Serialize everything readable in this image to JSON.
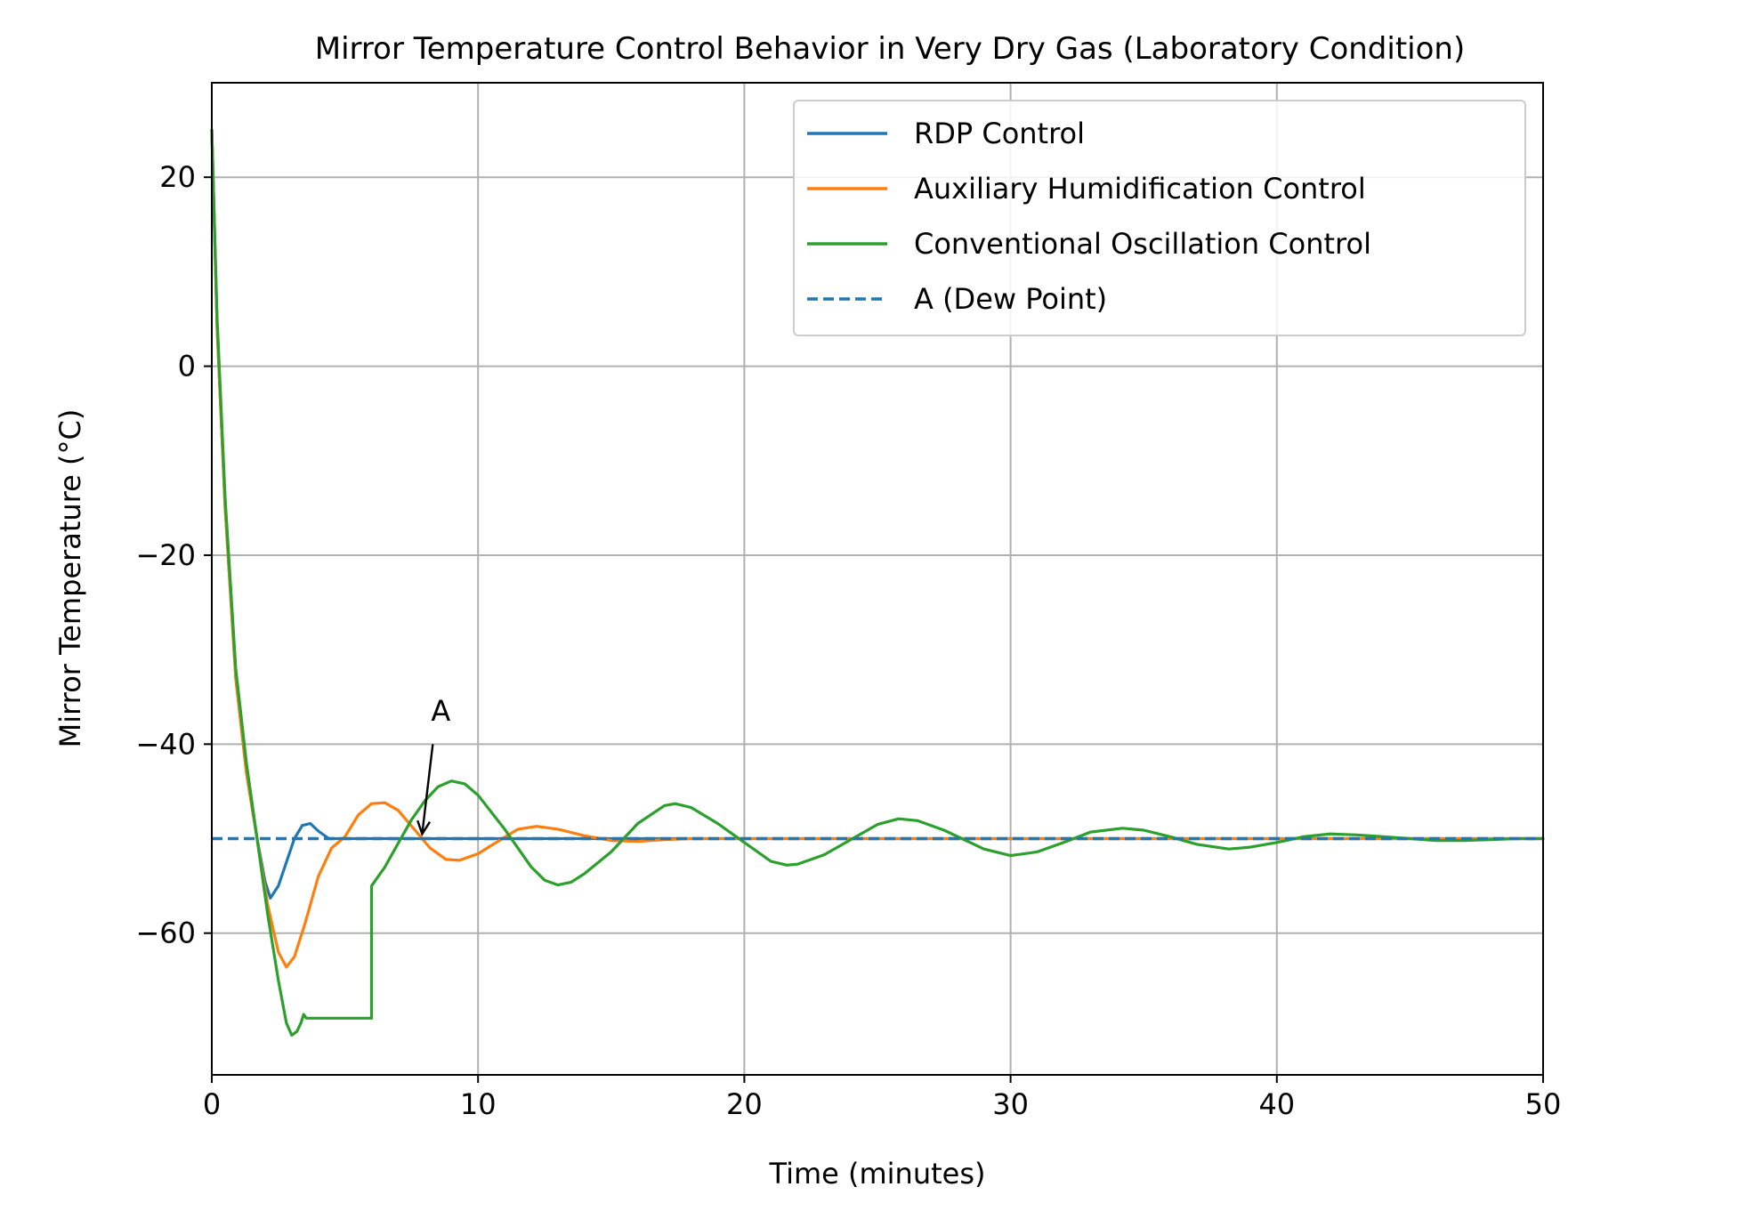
{
  "chart_data": {
    "type": "line",
    "title": "Mirror Temperature Control Behavior in Very Dry Gas (Laboratory Condition)",
    "xlabel": "Time (minutes)",
    "ylabel": "Mirror Temperature (°C)",
    "xlim": [
      0,
      50
    ],
    "ylim": [
      -75,
      30
    ],
    "xticks": [
      0,
      10,
      20,
      30,
      40,
      50
    ],
    "yticks": [
      -60,
      -40,
      -20,
      0,
      20
    ],
    "ytick_labels": [
      "−60",
      "−40",
      "−20",
      "0",
      "20"
    ],
    "grid": true,
    "legend_position": "top-right",
    "series": [
      {
        "name": "RDP Control",
        "color": "#1f77b4",
        "style": "solid",
        "points": [
          [
            0,
            25
          ],
          [
            0.2,
            4
          ],
          [
            0.5,
            -15
          ],
          [
            0.9,
            -33
          ],
          [
            1.3,
            -43
          ],
          [
            1.7,
            -50
          ],
          [
            2.0,
            -54.5
          ],
          [
            2.2,
            -56.3
          ],
          [
            2.5,
            -55
          ],
          [
            2.8,
            -52.5
          ],
          [
            3.1,
            -50
          ],
          [
            3.4,
            -48.6
          ],
          [
            3.7,
            -48.4
          ],
          [
            4.0,
            -49.2
          ],
          [
            4.4,
            -50
          ],
          [
            5,
            -50
          ],
          [
            10,
            -50
          ],
          [
            20,
            -50
          ],
          [
            30,
            -50
          ],
          [
            40,
            -50
          ],
          [
            50,
            -50
          ]
        ]
      },
      {
        "name": "Auxiliary Humidification Control",
        "color": "#ff7f0e",
        "style": "solid",
        "points": [
          [
            0,
            25
          ],
          [
            0.2,
            4
          ],
          [
            0.5,
            -15
          ],
          [
            0.9,
            -33
          ],
          [
            1.3,
            -43
          ],
          [
            1.7,
            -50
          ],
          [
            2.1,
            -57
          ],
          [
            2.5,
            -62
          ],
          [
            2.8,
            -63.6
          ],
          [
            3.1,
            -62.5
          ],
          [
            3.5,
            -59
          ],
          [
            4.0,
            -54
          ],
          [
            4.5,
            -51
          ],
          [
            5,
            -49.8
          ],
          [
            5.5,
            -47.5
          ],
          [
            6.0,
            -46.3
          ],
          [
            6.5,
            -46.2
          ],
          [
            7.0,
            -47
          ],
          [
            7.6,
            -49
          ],
          [
            8.2,
            -51
          ],
          [
            8.8,
            -52.2
          ],
          [
            9.3,
            -52.3
          ],
          [
            10,
            -51.6
          ],
          [
            10.8,
            -50.2
          ],
          [
            11.5,
            -49
          ],
          [
            12.2,
            -48.7
          ],
          [
            13,
            -49
          ],
          [
            14,
            -49.7
          ],
          [
            15,
            -50.2
          ],
          [
            16,
            -50.3
          ],
          [
            17,
            -50.1
          ],
          [
            18,
            -50
          ],
          [
            20,
            -50
          ],
          [
            30,
            -50
          ],
          [
            40,
            -50
          ],
          [
            50,
            -50
          ]
        ]
      },
      {
        "name": "Conventional Oscillation Control",
        "color": "#2ca02c",
        "style": "solid",
        "points": [
          [
            0,
            25
          ],
          [
            0.2,
            5
          ],
          [
            0.5,
            -14
          ],
          [
            0.9,
            -32
          ],
          [
            1.3,
            -42
          ],
          [
            1.7,
            -50
          ],
          [
            2.1,
            -58
          ],
          [
            2.5,
            -65
          ],
          [
            2.8,
            -69.5
          ],
          [
            3.0,
            -70.8
          ],
          [
            3.2,
            -70.4
          ],
          [
            3.35,
            -69.5
          ],
          [
            3.45,
            -68.6
          ],
          [
            3.55,
            -69
          ],
          [
            6.0,
            -69
          ],
          [
            6.0,
            -55
          ],
          [
            6.5,
            -53
          ],
          [
            7.0,
            -50.5
          ],
          [
            7.5,
            -48
          ],
          [
            8.0,
            -46
          ],
          [
            8.5,
            -44.5
          ],
          [
            9.0,
            -43.9
          ],
          [
            9.5,
            -44.2
          ],
          [
            10,
            -45.4
          ],
          [
            11,
            -49
          ],
          [
            12,
            -53
          ],
          [
            12.5,
            -54.4
          ],
          [
            13,
            -54.9
          ],
          [
            13.5,
            -54.6
          ],
          [
            14,
            -53.7
          ],
          [
            15,
            -51.4
          ],
          [
            16,
            -48.4
          ],
          [
            17,
            -46.5
          ],
          [
            17.4,
            -46.3
          ],
          [
            18,
            -46.7
          ],
          [
            19,
            -48.4
          ],
          [
            20,
            -50.4
          ],
          [
            21,
            -52.4
          ],
          [
            21.6,
            -52.8
          ],
          [
            22,
            -52.7
          ],
          [
            23,
            -51.7
          ],
          [
            24,
            -50.1
          ],
          [
            25,
            -48.5
          ],
          [
            25.8,
            -47.9
          ],
          [
            26.5,
            -48.1
          ],
          [
            27.5,
            -49.1
          ],
          [
            29,
            -51.1
          ],
          [
            30,
            -51.8
          ],
          [
            31,
            -51.4
          ],
          [
            32,
            -50.4
          ],
          [
            33,
            -49.3
          ],
          [
            34.2,
            -48.9
          ],
          [
            35,
            -49.1
          ],
          [
            36,
            -49.8
          ],
          [
            37,
            -50.6
          ],
          [
            38.2,
            -51.1
          ],
          [
            39,
            -50.9
          ],
          [
            40,
            -50.4
          ],
          [
            41,
            -49.8
          ],
          [
            42,
            -49.5
          ],
          [
            43,
            -49.6
          ],
          [
            44,
            -49.8
          ],
          [
            45,
            -50
          ],
          [
            46,
            -50.2
          ],
          [
            47,
            -50.2
          ],
          [
            48,
            -50.1
          ],
          [
            49,
            -50
          ],
          [
            50,
            -50
          ]
        ]
      },
      {
        "name": "A (Dew Point)",
        "color": "#1f77b4",
        "style": "dashed",
        "points": [
          [
            0,
            -50
          ],
          [
            50,
            -50
          ]
        ]
      }
    ],
    "annotations": [
      {
        "text": "A",
        "text_at": [
          8.6,
          -37.5
        ],
        "arrow_from": [
          8.3,
          -40
        ],
        "arrow_to": [
          7.9,
          -49.5
        ]
      }
    ]
  }
}
